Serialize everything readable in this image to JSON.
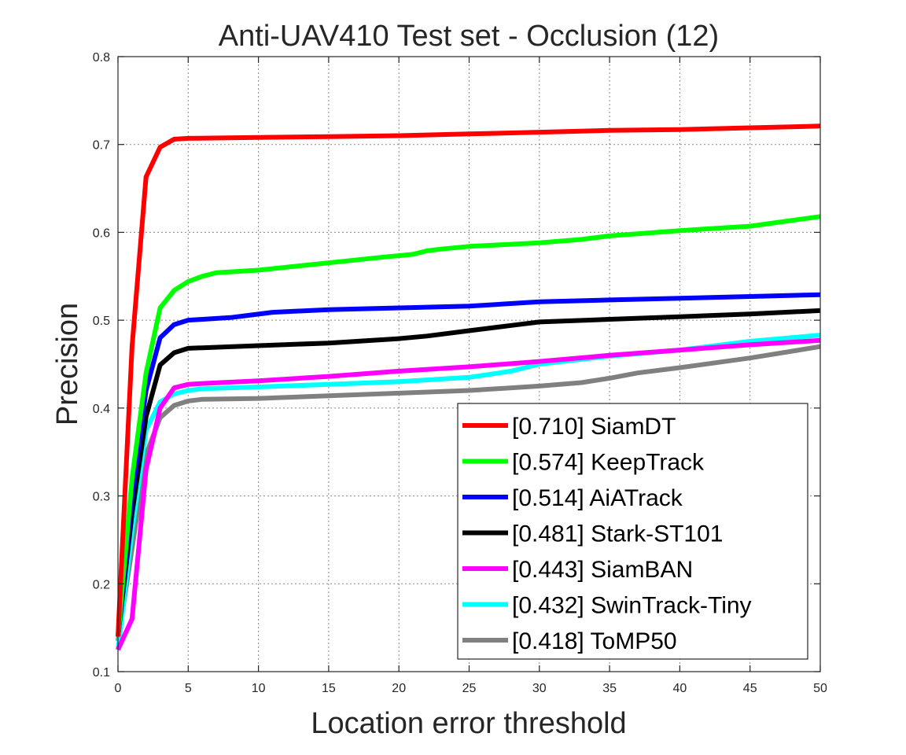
{
  "chart_data": {
    "type": "line",
    "title": "Anti-UAV410 Test set - Occlusion (12)",
    "xlabel": "Location error threshold",
    "ylabel": "Precision",
    "xlim": [
      0,
      50
    ],
    "ylim": [
      0.1,
      0.8
    ],
    "xticks": [
      0,
      5,
      10,
      15,
      20,
      25,
      30,
      35,
      40,
      45,
      50
    ],
    "yticks": [
      0.1,
      0.2,
      0.3,
      0.4,
      0.5,
      0.6,
      0.7,
      0.8
    ],
    "grid": true,
    "legend_position": "bottom-right",
    "series": [
      {
        "name": "[0.710] SiamDT",
        "color": "#ff0000",
        "points": [
          [
            0,
            0.14
          ],
          [
            1,
            0.47
          ],
          [
            2,
            0.663
          ],
          [
            3,
            0.697
          ],
          [
            4,
            0.706
          ],
          [
            5,
            0.707
          ],
          [
            10,
            0.708
          ],
          [
            15,
            0.709
          ],
          [
            20,
            0.71
          ],
          [
            25,
            0.712
          ],
          [
            30,
            0.714
          ],
          [
            35,
            0.716
          ],
          [
            40,
            0.717
          ],
          [
            45,
            0.719
          ],
          [
            50,
            0.721
          ]
        ]
      },
      {
        "name": "[0.574] KeepTrack",
        "color": "#00ff00",
        "points": [
          [
            0,
            0.14
          ],
          [
            1,
            0.32
          ],
          [
            2,
            0.44
          ],
          [
            3,
            0.514
          ],
          [
            4,
            0.534
          ],
          [
            5,
            0.544
          ],
          [
            6,
            0.55
          ],
          [
            7,
            0.554
          ],
          [
            10,
            0.557
          ],
          [
            13,
            0.562
          ],
          [
            16,
            0.567
          ],
          [
            19,
            0.572
          ],
          [
            21,
            0.575
          ],
          [
            22,
            0.579
          ],
          [
            23,
            0.581
          ],
          [
            25,
            0.584
          ],
          [
            30,
            0.588
          ],
          [
            33,
            0.592
          ],
          [
            35,
            0.596
          ],
          [
            40,
            0.602
          ],
          [
            45,
            0.607
          ],
          [
            50,
            0.618
          ]
        ]
      },
      {
        "name": "[0.514] AiATrack",
        "color": "#0000ff",
        "points": [
          [
            0,
            0.14
          ],
          [
            1,
            0.3
          ],
          [
            2,
            0.42
          ],
          [
            3,
            0.48
          ],
          [
            4,
            0.495
          ],
          [
            5,
            0.5
          ],
          [
            8,
            0.503
          ],
          [
            9,
            0.505
          ],
          [
            11,
            0.509
          ],
          [
            15,
            0.512
          ],
          [
            20,
            0.514
          ],
          [
            25,
            0.516
          ],
          [
            30,
            0.521
          ],
          [
            35,
            0.523
          ],
          [
            40,
            0.525
          ],
          [
            45,
            0.527
          ],
          [
            50,
            0.529
          ]
        ]
      },
      {
        "name": "[0.481] Stark-ST101",
        "color": "#000000",
        "points": [
          [
            0,
            0.14
          ],
          [
            1,
            0.28
          ],
          [
            2,
            0.39
          ],
          [
            3,
            0.449
          ],
          [
            4,
            0.463
          ],
          [
            5,
            0.468
          ],
          [
            10,
            0.471
          ],
          [
            15,
            0.474
          ],
          [
            20,
            0.479
          ],
          [
            22,
            0.482
          ],
          [
            25,
            0.488
          ],
          [
            28,
            0.494
          ],
          [
            30,
            0.498
          ],
          [
            35,
            0.501
          ],
          [
            40,
            0.504
          ],
          [
            45,
            0.507
          ],
          [
            50,
            0.511
          ]
        ]
      },
      {
        "name": "[0.443] SiamBAN",
        "color": "#ff00ff",
        "points": [
          [
            0,
            0.125
          ],
          [
            1,
            0.16
          ],
          [
            2,
            0.33
          ],
          [
            3,
            0.4
          ],
          [
            4,
            0.423
          ],
          [
            5,
            0.427
          ],
          [
            6,
            0.428
          ],
          [
            10,
            0.431
          ],
          [
            15,
            0.436
          ],
          [
            20,
            0.442
          ],
          [
            25,
            0.447
          ],
          [
            30,
            0.453
          ],
          [
            35,
            0.46
          ],
          [
            40,
            0.466
          ],
          [
            45,
            0.472
          ],
          [
            50,
            0.477
          ]
        ]
      },
      {
        "name": "[0.432] SwinTrack-Tiny",
        "color": "#00ffff",
        "points": [
          [
            0,
            0.125
          ],
          [
            1,
            0.26
          ],
          [
            2,
            0.375
          ],
          [
            3,
            0.407
          ],
          [
            4,
            0.416
          ],
          [
            5,
            0.42
          ],
          [
            6,
            0.422
          ],
          [
            10,
            0.424
          ],
          [
            15,
            0.427
          ],
          [
            20,
            0.43
          ],
          [
            25,
            0.435
          ],
          [
            28,
            0.442
          ],
          [
            30,
            0.45
          ],
          [
            35,
            0.459
          ],
          [
            40,
            0.466
          ],
          [
            45,
            0.476
          ],
          [
            50,
            0.483
          ]
        ]
      },
      {
        "name": "[0.418] ToMP50",
        "color": "#808080",
        "points": [
          [
            0,
            0.135
          ],
          [
            1,
            0.24
          ],
          [
            2,
            0.347
          ],
          [
            3,
            0.389
          ],
          [
            4,
            0.403
          ],
          [
            5,
            0.408
          ],
          [
            6,
            0.41
          ],
          [
            10,
            0.411
          ],
          [
            15,
            0.414
          ],
          [
            20,
            0.417
          ],
          [
            25,
            0.42
          ],
          [
            30,
            0.425
          ],
          [
            33,
            0.429
          ],
          [
            35,
            0.434
          ],
          [
            37,
            0.44
          ],
          [
            40,
            0.446
          ],
          [
            45,
            0.457
          ],
          [
            50,
            0.47
          ]
        ]
      }
    ]
  }
}
